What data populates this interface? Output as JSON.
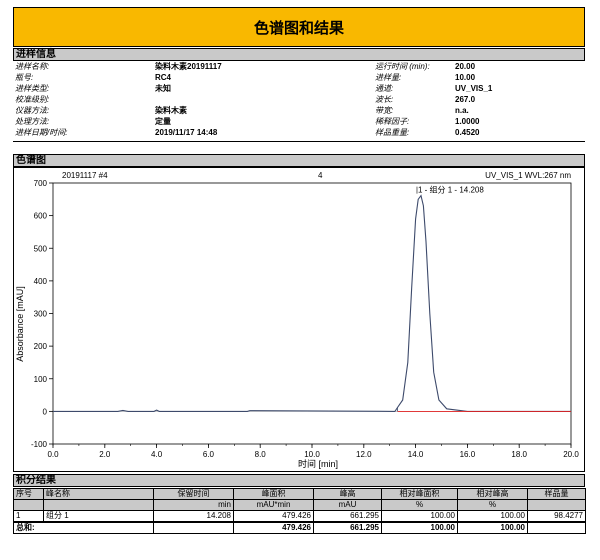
{
  "title": "色谱图和结果",
  "info": {
    "section_title": "进样信息",
    "left": [
      {
        "label": "进样名称:",
        "value": "染料木素20191117"
      },
      {
        "label": "瓶号:",
        "value": "RC4"
      },
      {
        "label": "进样类型:",
        "value": "未知"
      },
      {
        "label": "校准级别:",
        "value": ""
      },
      {
        "label": "仪器方法:",
        "value": "染料木素"
      },
      {
        "label": "处理方法:",
        "value": "定量"
      },
      {
        "label": "进样日期/时间:",
        "value": "2019/11/17 14:48"
      }
    ],
    "right": [
      {
        "label": "运行时间 (min):",
        "value": "20.00"
      },
      {
        "label": "进样量:",
        "value": "10.00"
      },
      {
        "label": "通道:",
        "value": "UV_VIS_1"
      },
      {
        "label": "波长:",
        "value": "267.0"
      },
      {
        "label": "带宽:",
        "value": "n.a."
      },
      {
        "label": "稀释因子:",
        "value": "1.0000"
      },
      {
        "label": "样品重量:",
        "value": "0.4520"
      }
    ]
  },
  "chromatogram": {
    "section_title": "色谱图",
    "header_left": "20191117 #4",
    "header_center": "4",
    "header_right": "UV_VIS_1 WVL:267 nm",
    "peak_label": "1 - 组分 1 - 14.208"
  },
  "chart_data": {
    "type": "line",
    "xlabel": "时间 [min]",
    "ylabel": "Absorbance [mAU]",
    "xlim": [
      0.0,
      20.0
    ],
    "ylim": [
      -100,
      700
    ],
    "xticks": [
      "0.0",
      "2.0",
      "4.0",
      "6.0",
      "8.0",
      "10.0",
      "12.0",
      "14.0",
      "16.0",
      "18.0",
      "20.0"
    ],
    "yticks": [
      "-100",
      "0",
      "100",
      "200",
      "300",
      "400",
      "500",
      "600",
      "700"
    ],
    "series": [
      {
        "color": "#3d4a6b",
        "x": [
          0.0,
          2.5,
          2.7,
          2.9,
          3.9,
          4.0,
          4.1,
          7.5,
          7.6,
          13.2,
          13.3,
          13.5,
          13.7,
          13.85,
          14.0,
          14.1,
          14.208,
          14.3,
          14.4,
          14.55,
          14.7,
          14.9,
          15.2,
          16.0,
          20.0
        ],
        "y": [
          0,
          0,
          3,
          0,
          0,
          4,
          0,
          0,
          2,
          0,
          12,
          35,
          150,
          380,
          590,
          650,
          661.295,
          630,
          520,
          300,
          120,
          35,
          8,
          0,
          0
        ]
      },
      {
        "color": "#e02020",
        "x": [
          13.3,
          20.0
        ],
        "y": [
          0,
          0
        ]
      }
    ],
    "peaks": [
      {
        "label": "1 - 组分 1 - 14.208",
        "rt": 14.208,
        "height": 661.295
      }
    ]
  },
  "results": {
    "section_title": "积分结果",
    "headers": [
      {
        "top": "序号",
        "sub": ""
      },
      {
        "top": "峰名称",
        "sub": ""
      },
      {
        "top": "保留时间",
        "sub": "min"
      },
      {
        "top": "峰面积",
        "sub": "mAU*min"
      },
      {
        "top": "峰高",
        "sub": "mAU"
      },
      {
        "top": "相对峰面积",
        "sub": "%"
      },
      {
        "top": "相对峰高",
        "sub": "%"
      },
      {
        "top": "样品量",
        "sub": ""
      }
    ],
    "row": [
      "1",
      "组分 1",
      "14.208",
      "479.426",
      "661.295",
      "100.00",
      "100.00",
      "98.4277"
    ],
    "total": {
      "label": "总和:",
      "area": "479.426",
      "height": "661.295",
      "rel_area": "100.00",
      "rel_height": "100.00"
    }
  }
}
